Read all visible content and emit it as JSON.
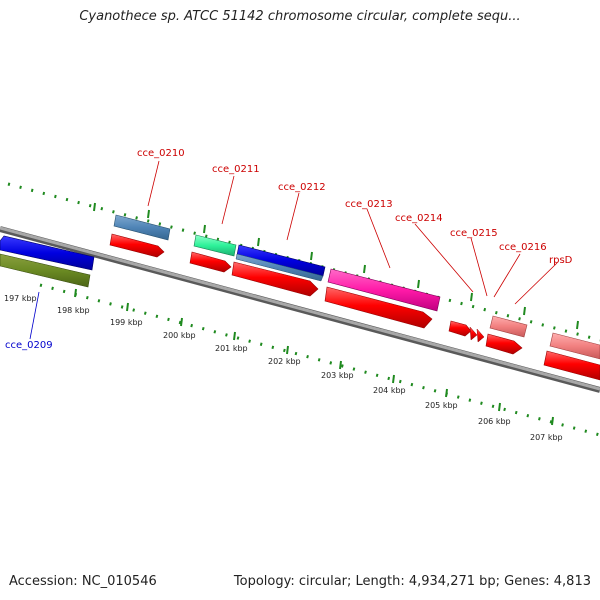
{
  "title": "Cyanothece sp. ATCC 51142 chromosome circular, complete sequ...",
  "footer": {
    "accession": "Accession: NC_010546",
    "summary": "Topology: circular; Length: 4,934,271 bp; Genes: 4,813"
  },
  "colors": {
    "backbone": "#8a8a8a",
    "gc_ticks": "#1f8a1f",
    "cds": "#ff0000",
    "gene_label": "#cc0000",
    "blue_label": "#0000cc"
  },
  "ticks": [
    "197 kbp",
    "198 kbp",
    "199 kbp",
    "200 kbp",
    "201 kbp",
    "202 kbp",
    "203 kbp",
    "204 kbp",
    "205 kbp",
    "206 kbp",
    "207 kbp"
  ],
  "genes": [
    {
      "label": "cce_0209",
      "color": "#0000cc"
    },
    {
      "label": "cce_0210",
      "color": "#cc0000"
    },
    {
      "label": "cce_0211",
      "color": "#cc0000"
    },
    {
      "label": "cce_0212",
      "color": "#cc0000"
    },
    {
      "label": "cce_0213",
      "color": "#cc0000"
    },
    {
      "label": "cce_0214",
      "color": "#cc0000"
    },
    {
      "label": "cce_0215",
      "color": "#cc0000"
    },
    {
      "label": "cce_0216",
      "color": "#cc0000"
    },
    {
      "label": "rpsD",
      "color": "#cc0000"
    }
  ]
}
